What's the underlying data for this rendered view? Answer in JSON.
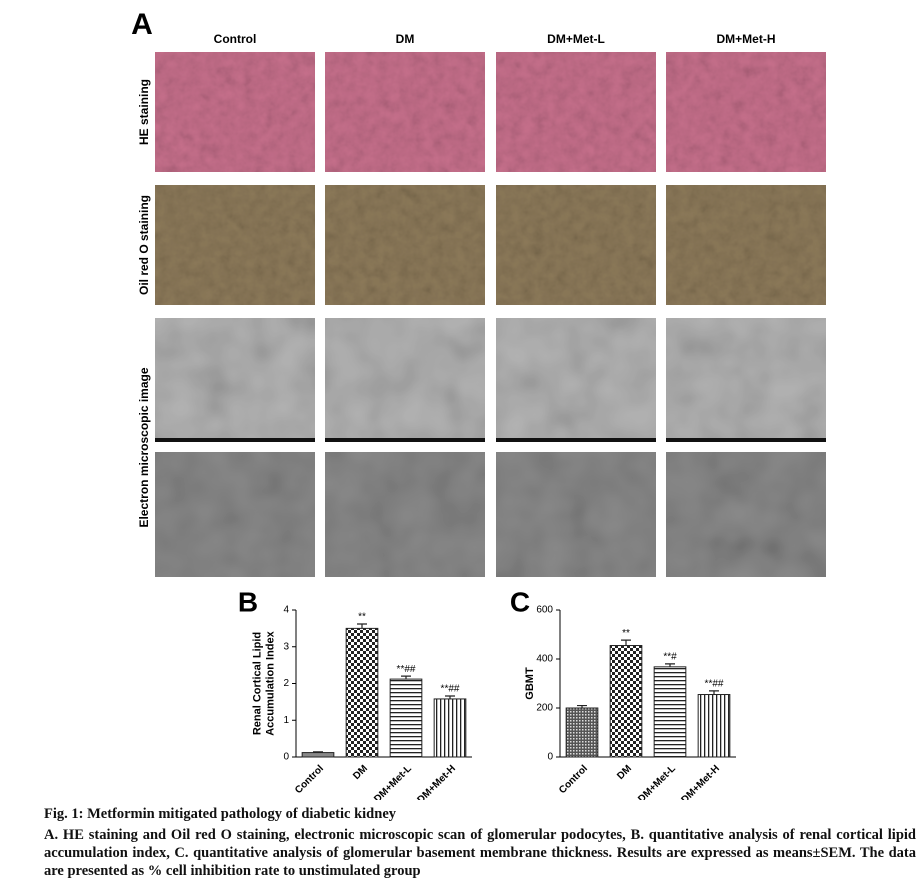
{
  "panel_a": {
    "label": "A",
    "columns": [
      "Control",
      "DM",
      "DM+Met-L",
      "DM+Met-H"
    ],
    "rows": [
      "HE staining",
      "Oil red O staining",
      "Electron microscopic image"
    ]
  },
  "chart_data": [
    {
      "type": "bar",
      "label": "B",
      "ylabel": [
        "Renal Cortical Lipid",
        "Accumulation Index"
      ],
      "categories": [
        "Control",
        "DM",
        "DM+Met-L",
        "DM+Met-H"
      ],
      "values": [
        0.12,
        3.5,
        2.12,
        1.58
      ],
      "errors": [
        0.02,
        0.12,
        0.08,
        0.08
      ],
      "annotations": [
        null,
        "**",
        "**##",
        "**##"
      ],
      "patterns": [
        "solid",
        "checker",
        "hlines",
        "vlines"
      ],
      "color": "#222222",
      "ylim": [
        0,
        4
      ],
      "yticks": [
        0,
        1,
        2,
        3,
        4
      ]
    },
    {
      "type": "bar",
      "label": "C",
      "ylabel": [
        "GBMT"
      ],
      "categories": [
        "Control",
        "DM",
        "DM+Met-L",
        "DM+Met-H"
      ],
      "values": [
        200,
        455,
        368,
        255
      ],
      "errors": [
        10,
        22,
        12,
        15
      ],
      "annotations": [
        null,
        "**",
        "**#",
        "**##"
      ],
      "patterns": [
        "dots",
        "checker",
        "hlines",
        "vlines"
      ],
      "color": "#222222",
      "ylim": [
        0,
        600
      ],
      "yticks": [
        0,
        200,
        400,
        600
      ]
    }
  ],
  "caption": {
    "title": "Fig. 1: Metformin mitigated pathology of diabetic kidney",
    "text": "A. HE staining and Oil red O staining, electronic microscopic scan of glomerular podocytes, B. quantitative analysis of renal cortical lipid accumulation index, C. quantitative analysis of glomerular basement membrane thickness. Results are expressed as means±SEM. The data are presented as % cell inhibition rate to unstimulated group"
  }
}
